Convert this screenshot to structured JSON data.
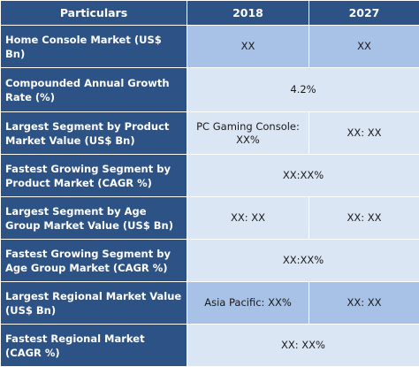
{
  "header": {
    "particulars": "Particulars",
    "year_1": "2018",
    "year_2": "2027"
  },
  "rows": [
    {
      "label": "Home Console Market (US$ Bn)",
      "y2018": "XX",
      "y2027": "XX"
    },
    {
      "label": "Compounded Annual Growth Rate (%)",
      "value": "4.2%"
    },
    {
      "label": "Largest Segment by Product Market Value (US$ Bn)",
      "y2018": "PC Gaming Console: XX%",
      "y2027": "XX: XX"
    },
    {
      "label": "Fastest Growing Segment by Product Market (CAGR %)",
      "value": "XX:XX%"
    },
    {
      "label": "Largest Segment by Age Group Market Value (US$ Bn)",
      "y2018": "XX: XX",
      "y2027": "XX: XX"
    },
    {
      "label": "Fastest Growing Segment by Age Group Market (CAGR %)",
      "value": "XX:XX%"
    },
    {
      "label": "Largest Regional Market Value (US$ Bn)",
      "y2018": "Asia Pacific: XX%",
      "y2027": "XX: XX"
    },
    {
      "label": "Fastest Regional Market (CAGR %)",
      "value": "XX: XX%"
    }
  ],
  "colors": {
    "header_blue": "#2d5285",
    "cell_dark": "#a7c2e6",
    "cell_light": "#dbe6f5"
  }
}
